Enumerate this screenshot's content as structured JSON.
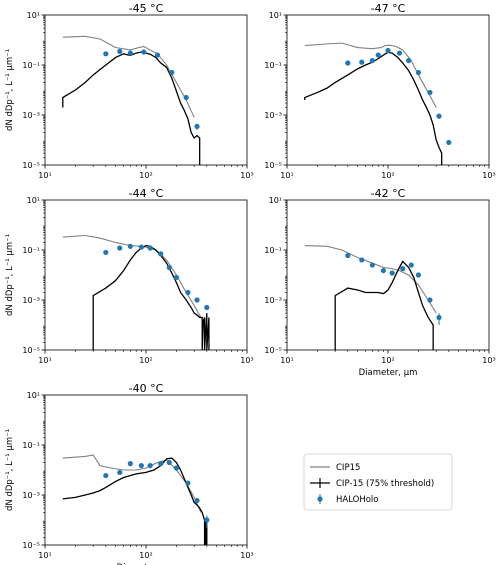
{
  "legend": {
    "entries": [
      {
        "label": "CIP15",
        "color": "#808080"
      },
      {
        "label": "CIP-15 (75% threshold)",
        "color": "#000000"
      },
      {
        "label": "HALOHolo",
        "color": "#1f77b4"
      }
    ]
  },
  "chart_data": [
    {
      "type": "line",
      "title": "-45 °C",
      "xlabel": "",
      "ylabel": "dN dDp⁻¹, L⁻¹ μm⁻¹",
      "xscale": "log",
      "yscale": "log",
      "xlim": [
        10,
        1000
      ],
      "ylim": [
        1e-05,
        10
      ],
      "xticks": [
        "10¹",
        "10²",
        "10³"
      ],
      "yticks": [
        "10⁻⁵",
        "10⁻³",
        "10⁻¹",
        "10¹"
      ],
      "series": [
        {
          "name": "CIP15",
          "color": "#808080",
          "x": [
            15,
            25,
            35,
            50,
            70,
            85,
            95,
            110,
            130,
            160,
            200,
            250,
            300
          ],
          "y": [
            1.3,
            1.4,
            1.1,
            0.5,
            0.4,
            0.5,
            0.55,
            0.4,
            0.28,
            0.1,
            0.02,
            0.004,
            0.0008
          ]
        },
        {
          "name": "CIP-15 (75% threshold)",
          "color": "#000000",
          "x": [
            15,
            15,
            20,
            25,
            30,
            40,
            50,
            60,
            70,
            80,
            90,
            100,
            110,
            125,
            140,
            160,
            180,
            200,
            220,
            240,
            260,
            280,
            300,
            320,
            340,
            340
          ],
          "y": [
            0.002,
            0.005,
            0.01,
            0.02,
            0.04,
            0.1,
            0.2,
            0.28,
            0.24,
            0.3,
            0.33,
            0.3,
            0.27,
            0.2,
            0.12,
            0.08,
            0.03,
            0.009,
            0.003,
            0.0015,
            0.0007,
            0.0002,
            0.00012,
            0.00015,
            0.00012,
            1e-05
          ]
        },
        {
          "name": "HALOHolo",
          "color": "#1f77b4",
          "x": [
            40,
            55,
            70,
            95,
            130,
            180,
            250,
            320
          ],
          "y": [
            0.28,
            0.35,
            0.3,
            0.33,
            0.25,
            0.05,
            0.005,
            0.00035
          ],
          "err_lo": [
            null,
            null,
            null,
            null,
            null,
            null,
            null,
            0.00025
          ],
          "err_hi": [
            null,
            null,
            null,
            null,
            null,
            null,
            null,
            0.00045
          ]
        }
      ]
    },
    {
      "type": "line",
      "title": "-47 °C",
      "xlabel": "",
      "ylabel": "",
      "xscale": "log",
      "yscale": "log",
      "xlim": [
        10,
        1000
      ],
      "ylim": [
        1e-05,
        10
      ],
      "xticks": [
        "10¹",
        "10²",
        "10³"
      ],
      "yticks": [
        "10⁻⁵",
        "10⁻³",
        "10⁻¹",
        "10¹"
      ],
      "series": [
        {
          "name": "CIP15",
          "color": "#808080",
          "x": [
            15,
            25,
            35,
            50,
            70,
            85,
            95,
            105,
            120,
            140,
            170,
            200,
            250,
            300
          ],
          "y": [
            0.6,
            0.7,
            0.75,
            0.5,
            0.45,
            0.5,
            0.6,
            0.62,
            0.55,
            0.4,
            0.15,
            0.04,
            0.008,
            0.002
          ]
        },
        {
          "name": "CIP-15 (75% threshold)",
          "color": "#000000",
          "x": [
            15,
            15,
            20,
            25,
            30,
            40,
            50,
            60,
            70,
            80,
            90,
            100,
            110,
            125,
            140,
            160,
            180,
            200,
            220,
            240,
            260,
            280,
            300,
            320,
            340,
            340
          ],
          "y": [
            0.004,
            0.005,
            0.008,
            0.012,
            0.02,
            0.04,
            0.07,
            0.1,
            0.13,
            0.18,
            0.25,
            0.32,
            0.3,
            0.2,
            0.12,
            0.06,
            0.025,
            0.01,
            0.004,
            0.002,
            0.001,
            0.0004,
            0.0001,
            5e-05,
            3e-05,
            1e-05
          ]
        },
        {
          "name": "HALOHolo",
          "color": "#1f77b4",
          "x": [
            40,
            55,
            70,
            80,
            100,
            130,
            160,
            200,
            260,
            320,
            400
          ],
          "y": [
            0.12,
            0.13,
            0.15,
            0.25,
            0.38,
            0.3,
            0.15,
            0.05,
            0.008,
            0.0009,
            8e-05
          ]
        }
      ]
    },
    {
      "type": "line",
      "title": "-44 °C",
      "xlabel": "",
      "ylabel": "dN dDp⁻¹, L⁻¹ μm⁻¹",
      "xscale": "log",
      "yscale": "log",
      "xlim": [
        10,
        1000
      ],
      "ylim": [
        1e-05,
        10
      ],
      "xticks": [
        "10¹",
        "10²",
        "10³"
      ],
      "yticks": [
        "10⁻⁵",
        "10⁻³",
        "10⁻¹",
        "10¹"
      ],
      "series": [
        {
          "name": "CIP15",
          "color": "#808080",
          "x": [
            15,
            25,
            35,
            50,
            70,
            90,
            110,
            130,
            160,
            200,
            250,
            300,
            350
          ],
          "y": [
            0.33,
            0.38,
            0.3,
            0.2,
            0.15,
            0.14,
            0.12,
            0.09,
            0.04,
            0.01,
            0.002,
            0.0006,
            0.0002
          ]
        },
        {
          "name": "CIP-15 (75% threshold)",
          "color": "#000000",
          "x": [
            30,
            30,
            40,
            50,
            60,
            70,
            80,
            90,
            100,
            110,
            125,
            140,
            160,
            180,
            200,
            220,
            250,
            280,
            300,
            320,
            340,
            360,
            360,
            370,
            380,
            380,
            400,
            400,
            420,
            420
          ],
          "y": [
            1e-05,
            0.0015,
            0.003,
            0.006,
            0.015,
            0.04,
            0.08,
            0.12,
            0.15,
            0.14,
            0.1,
            0.06,
            0.03,
            0.012,
            0.005,
            0.002,
            0.001,
            0.0005,
            0.0003,
            0.00025,
            0.0002,
            0.0002,
            1e-05,
            0.00015,
            0.0002,
            1e-05,
            0.0003,
            1e-05,
            0.0002,
            1e-05
          ]
        },
        {
          "name": "HALOHolo",
          "color": "#1f77b4",
          "x": [
            40,
            55,
            70,
            90,
            110,
            140,
            170,
            200,
            260,
            320,
            400
          ],
          "y": [
            0.08,
            0.12,
            0.14,
            0.13,
            0.12,
            0.07,
            0.02,
            0.008,
            0.002,
            0.001,
            0.0005
          ]
        }
      ]
    },
    {
      "type": "line",
      "title": "-42 °C",
      "xlabel": "Diameter, μm",
      "ylabel": "",
      "xscale": "log",
      "yscale": "log",
      "xlim": [
        10,
        1000
      ],
      "ylim": [
        1e-05,
        10
      ],
      "xticks": [
        "10¹",
        "10²",
        "10³"
      ],
      "yticks": [
        "10⁻⁵",
        "10⁻³",
        "10⁻¹",
        "10¹"
      ],
      "series": [
        {
          "name": "CIP15",
          "color": "#808080",
          "x": [
            15,
            25,
            35,
            50,
            70,
            90,
            110,
            130,
            160,
            200,
            250,
            300
          ],
          "y": [
            0.15,
            0.14,
            0.1,
            0.05,
            0.03,
            0.02,
            0.018,
            0.015,
            0.01,
            0.004,
            0.001,
            0.0003
          ]
        },
        {
          "name": "CIP-15 (75% threshold)",
          "color": "#000000",
          "x": [
            30,
            30,
            40,
            50,
            60,
            70,
            80,
            90,
            100,
            110,
            125,
            140,
            160,
            180,
            200,
            220,
            250,
            280,
            280
          ],
          "y": [
            1e-05,
            0.0015,
            0.003,
            0.0025,
            0.002,
            0.002,
            0.002,
            0.0018,
            0.0025,
            0.005,
            0.015,
            0.035,
            0.02,
            0.008,
            0.002,
            0.0006,
            0.0002,
            0.0001,
            1e-05
          ]
        },
        {
          "name": "HALOHolo",
          "color": "#1f77b4",
          "x": [
            40,
            55,
            70,
            90,
            110,
            140,
            170,
            200,
            260,
            320
          ],
          "y": [
            0.06,
            0.04,
            0.025,
            0.015,
            0.012,
            0.018,
            0.025,
            0.01,
            0.001,
            0.0002
          ],
          "err_lo": [
            null,
            null,
            null,
            null,
            null,
            null,
            null,
            null,
            null,
            0.0001
          ],
          "err_hi": [
            null,
            null,
            null,
            null,
            null,
            null,
            null,
            null,
            null,
            0.0003
          ]
        }
      ]
    },
    {
      "type": "line",
      "title": "-40 °C",
      "xlabel": "Diameter, μm",
      "ylabel": "dN dDp⁻¹, L⁻¹ μm⁻¹",
      "xscale": "log",
      "yscale": "log",
      "xlim": [
        10,
        1000
      ],
      "ylim": [
        1e-05,
        10
      ],
      "xticks": [
        "10¹",
        "10²",
        "10³"
      ],
      "yticks": [
        "10⁻⁵",
        "10⁻³",
        "10⁻¹",
        "10¹"
      ],
      "series": [
        {
          "name": "CIP15",
          "color": "#808080",
          "x": [
            15,
            25,
            30,
            35,
            45,
            60,
            80,
            100,
            130,
            160,
            200,
            250,
            300,
            350
          ],
          "y": [
            0.03,
            0.035,
            0.04,
            0.015,
            0.012,
            0.01,
            0.01,
            0.012,
            0.02,
            0.025,
            0.01,
            0.003,
            0.0008,
            0.0002
          ]
        },
        {
          "name": "CIP-15 (75% threshold)",
          "color": "#000000",
          "x": [
            15,
            20,
            25,
            30,
            35,
            40,
            50,
            60,
            70,
            80,
            100,
            120,
            140,
            160,
            180,
            200,
            220,
            250,
            280,
            300,
            320,
            340,
            360,
            380,
            380,
            390,
            390,
            400,
            400
          ],
          "y": [
            0.0007,
            0.0008,
            0.001,
            0.0012,
            0.0015,
            0.002,
            0.0035,
            0.005,
            0.006,
            0.007,
            0.008,
            0.01,
            0.015,
            0.028,
            0.03,
            0.02,
            0.01,
            0.003,
            0.001,
            0.0005,
            0.0004,
            0.0003,
            0.0002,
            0.0001,
            1e-05,
            0.0001,
            1e-05,
            8e-05,
            1e-05
          ]
        },
        {
          "name": "HALOHolo",
          "color": "#1f77b4",
          "x": [
            40,
            55,
            70,
            90,
            110,
            140,
            170,
            200,
            260,
            320,
            400
          ],
          "y": [
            0.006,
            0.008,
            0.018,
            0.015,
            0.015,
            0.018,
            0.02,
            0.012,
            0.003,
            0.0006,
            0.0001
          ],
          "err_lo": [
            null,
            null,
            null,
            null,
            null,
            null,
            null,
            null,
            null,
            null,
            5e-05
          ],
          "err_hi": [
            null,
            null,
            null,
            null,
            null,
            null,
            null,
            null,
            null,
            null,
            0.00015
          ]
        }
      ]
    }
  ]
}
